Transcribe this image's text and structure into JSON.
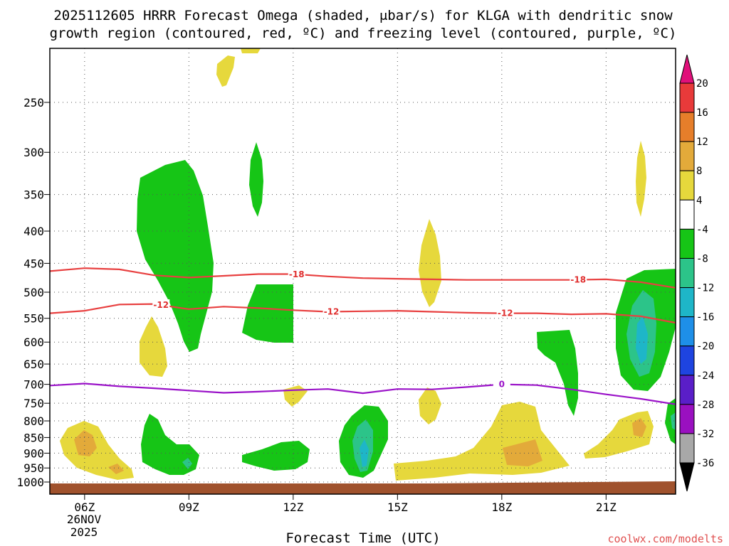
{
  "chart_data": {
    "type": "time-height contour",
    "title_line1": "2025112605 HRRR Forecast Omega (shaded, μbar/s) for KLGA with dendritic snow",
    "title_line2": "growth region (contoured, red, ºC) and freezing level (contoured, purple, ºC)",
    "xlabel": "Forecast Time (UTC)",
    "credit": "coolwx.com/modelts",
    "x_range_hours": [
      5,
      23
    ],
    "x_ticks": [
      {
        "hour": 6,
        "label": "06Z"
      },
      {
        "hour": 9,
        "label": "09Z"
      },
      {
        "hour": 12,
        "label": "12Z"
      },
      {
        "hour": 15,
        "label": "15Z"
      },
      {
        "hour": 18,
        "label": "18Z"
      },
      {
        "hour": 21,
        "label": "21Z"
      }
    ],
    "date_label_day": "26NOV",
    "date_label_year": "2025",
    "y_ticks_hpa": [
      "250",
      "300",
      "350",
      "400",
      "450",
      "500",
      "550",
      "600",
      "650",
      "700",
      "750",
      "800",
      "850",
      "900",
      "950",
      "1000"
    ],
    "colorbar": {
      "labels": [
        "20",
        "16",
        "12",
        "8",
        "4",
        "-4",
        "-8",
        "-12",
        "-16",
        "-20",
        "-24",
        "-28",
        "-32",
        "-36"
      ],
      "colors": [
        "#e8e8e8",
        "#e83a3a",
        "#e67e2a",
        "#e3aa3a",
        "#e6d83c",
        "#ffffff",
        "#16c516",
        "#2cc489",
        "#1eb6c8",
        "#1e8fe8",
        "#1e44e0",
        "#5a1ec8",
        "#9a10c0",
        "#a8a8a8"
      ],
      "top_arrow_color": "#e0107a",
      "bottom_arrow_color": "#000000"
    },
    "contours": {
      "dgz_minus12": {
        "label": "-12",
        "color": "#e84040",
        "points": [
          [
            5,
            540
          ],
          [
            6,
            535
          ],
          [
            7,
            523
          ],
          [
            8,
            522
          ],
          [
            9,
            532
          ],
          [
            10,
            527
          ],
          [
            11,
            530
          ],
          [
            12,
            534
          ],
          [
            13,
            537
          ],
          [
            14,
            536
          ],
          [
            15,
            535
          ],
          [
            16,
            537
          ],
          [
            17,
            539
          ],
          [
            18,
            540
          ],
          [
            19,
            540
          ],
          [
            20,
            542
          ],
          [
            21,
            541
          ],
          [
            22,
            546
          ],
          [
            23,
            559
          ]
        ],
        "label_hours": [
          8.2,
          13.1,
          18.1
        ]
      },
      "dgz_minus18": {
        "label": "-18",
        "color": "#e84040",
        "points": [
          [
            5,
            463
          ],
          [
            6,
            458
          ],
          [
            7,
            460
          ],
          [
            8,
            470
          ],
          [
            9,
            474
          ],
          [
            10,
            471
          ],
          [
            11,
            468
          ],
          [
            12,
            468
          ],
          [
            13,
            472
          ],
          [
            14,
            475
          ],
          [
            15,
            476
          ],
          [
            16,
            477
          ],
          [
            17,
            478
          ],
          [
            18,
            478
          ],
          [
            19,
            478
          ],
          [
            20,
            478
          ],
          [
            21,
            477
          ],
          [
            22,
            482
          ],
          [
            23,
            492
          ]
        ],
        "label_hours": [
          12.1,
          20.2
        ]
      },
      "freezing_level": {
        "label": "0",
        "color": "#9a12c8",
        "points": [
          [
            5,
            703
          ],
          [
            6,
            698
          ],
          [
            7,
            705
          ],
          [
            8,
            710
          ],
          [
            9,
            716
          ],
          [
            10,
            722
          ],
          [
            11,
            719
          ],
          [
            12,
            715
          ],
          [
            13,
            712
          ],
          [
            14,
            723
          ],
          [
            15,
            712
          ],
          [
            16,
            713
          ],
          [
            17,
            707
          ],
          [
            18,
            700
          ],
          [
            19,
            702
          ],
          [
            20,
            713
          ],
          [
            21,
            726
          ],
          [
            22,
            738
          ],
          [
            23,
            753
          ]
        ],
        "label_hours": [
          18.0
        ]
      }
    },
    "omega_regions": [
      {
        "value_class": "-4 to -8",
        "color": "#16c516",
        "hours": [
          [
            7.6,
            7.7,
            8.3,
            9.5,
            8.8,
            7.5
          ],
          [
            9.0,
            8.6,
            8.1,
            8.3,
            8.7,
            9.2
          ]
        ],
        "pressure_hint": "350-590"
      },
      {
        "value_class": "4 to 8",
        "color": "#e6d83c",
        "note": "yellow ascent pockets"
      },
      {
        "value_class": "8 to 12",
        "color": "#e3aa3a",
        "note": "orange maxima near 880-960 hPa"
      },
      {
        "value_class": "-8 to -12",
        "color": "#2cc489",
        "note": "teal cores near 14Z and 22Z"
      }
    ]
  }
}
